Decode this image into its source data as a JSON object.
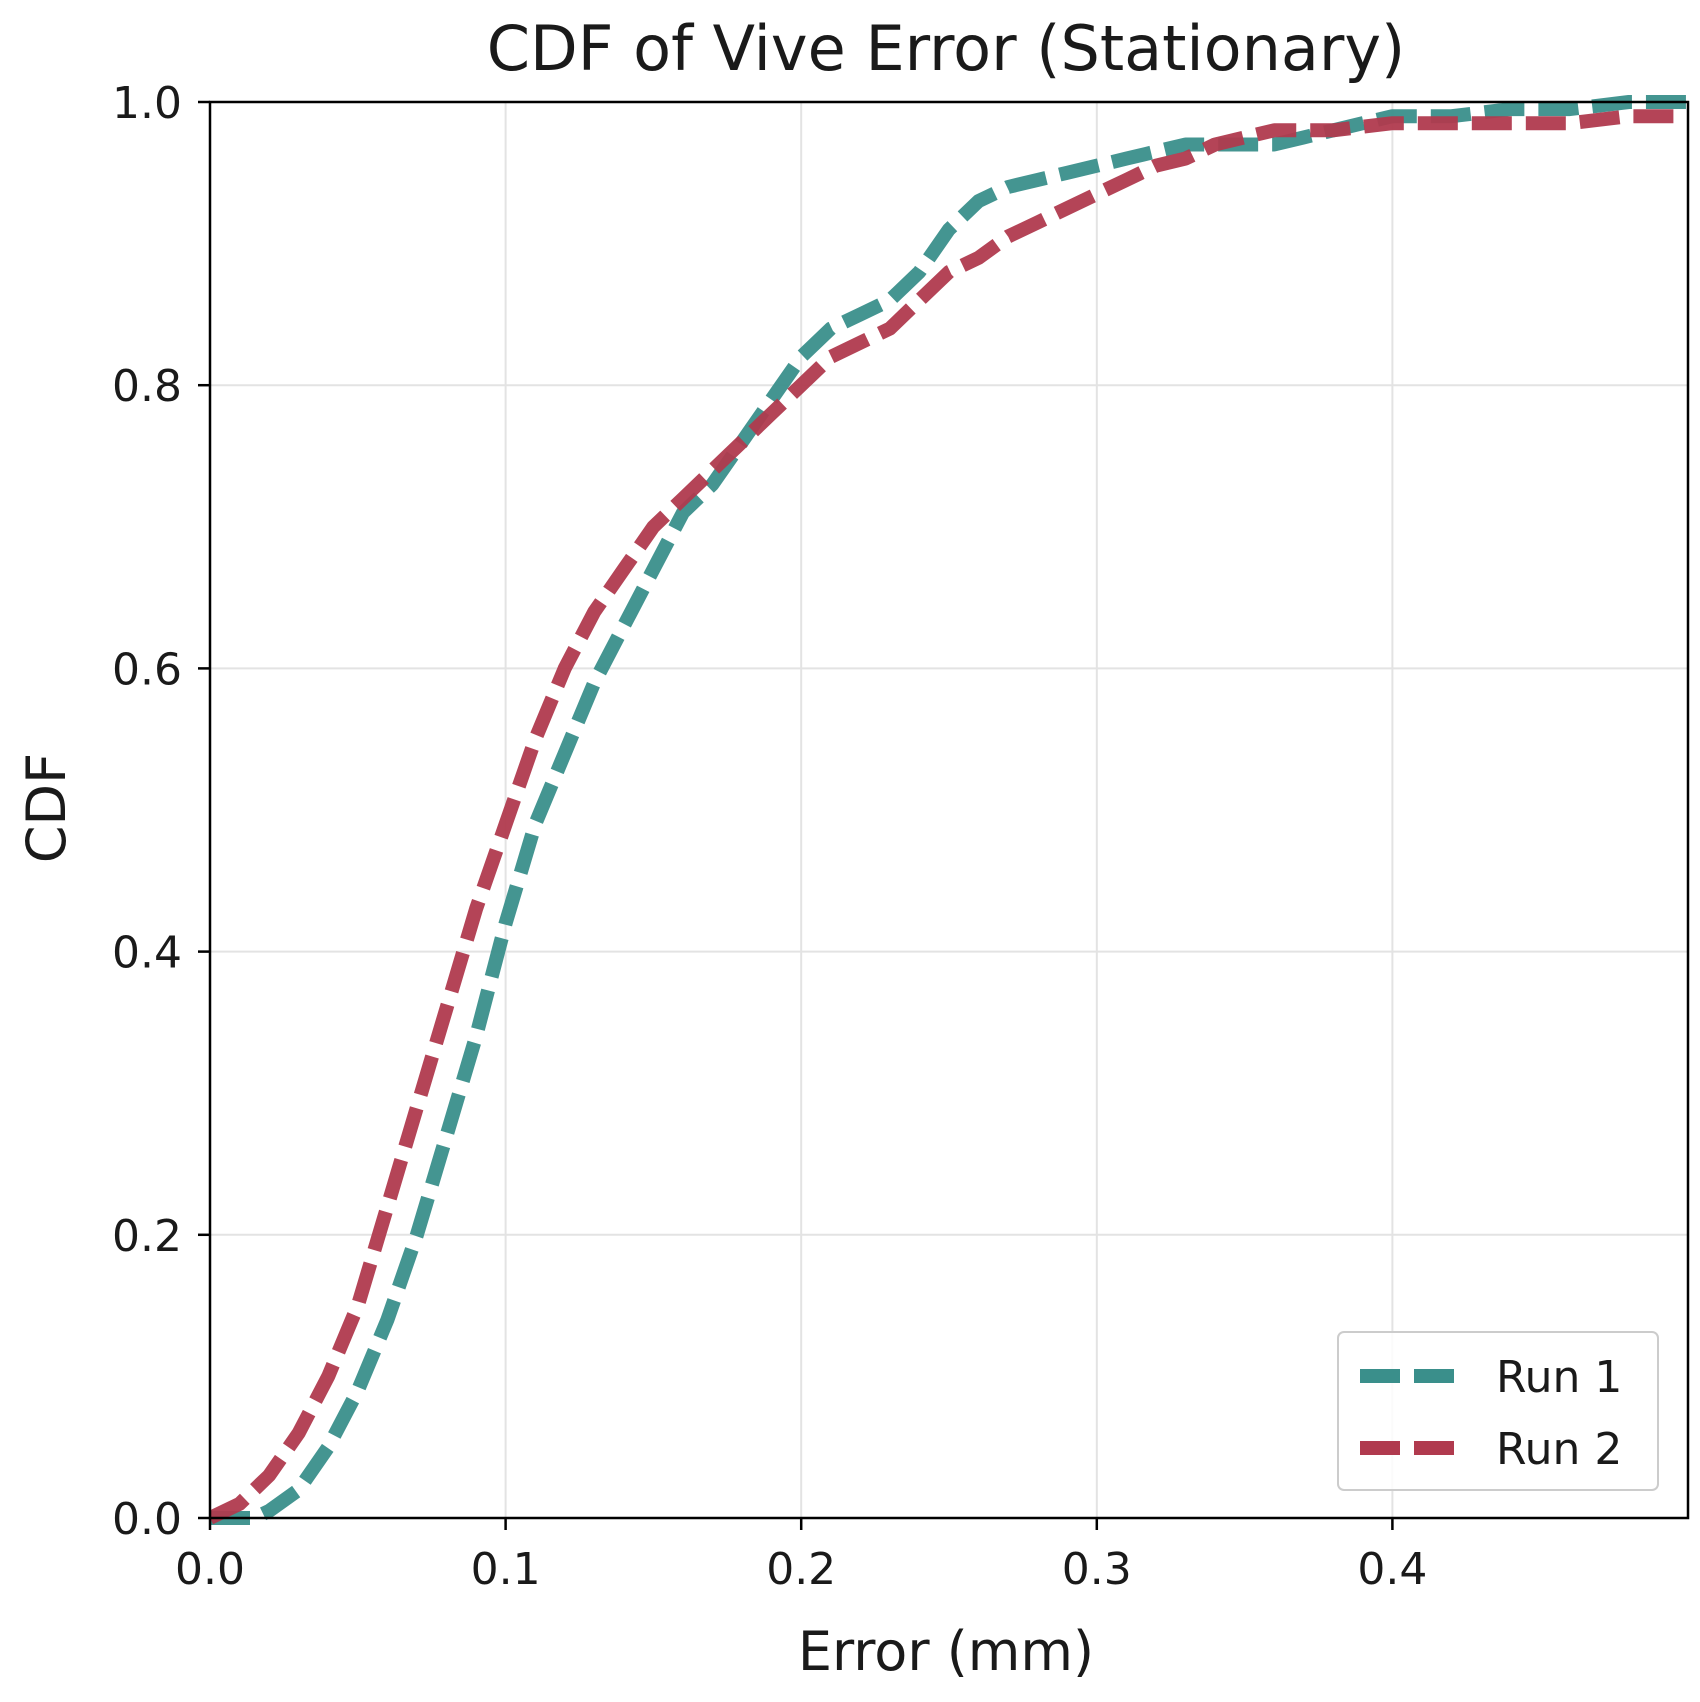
{
  "chart_data": {
    "type": "line",
    "title": "CDF of Vive Error (Stationary)",
    "xlabel": "Error (mm)",
    "ylabel": "CDF",
    "xlim": [
      0,
      0.5
    ],
    "ylim": [
      0,
      1
    ],
    "xticks": [
      0,
      0.1,
      0.2,
      0.3,
      0.4
    ],
    "xtick_labels": [
      "0.0",
      "0.1",
      "0.2",
      "0.3",
      "0.4"
    ],
    "yticks": [
      0,
      0.2,
      0.4,
      0.6,
      0.8,
      1.0
    ],
    "ytick_labels": [
      "0.0",
      "0.2",
      "0.4",
      "0.6",
      "0.8",
      "1.0"
    ],
    "grid": true,
    "legend_position": "lower-right",
    "series": [
      {
        "name": "Run 1",
        "color": "#3a8f8b",
        "x": [
          0.0,
          0.015,
          0.02,
          0.03,
          0.04,
          0.05,
          0.06,
          0.07,
          0.08,
          0.09,
          0.095,
          0.1,
          0.11,
          0.12,
          0.13,
          0.14,
          0.15,
          0.16,
          0.17,
          0.18,
          0.19,
          0.2,
          0.21,
          0.22,
          0.23,
          0.24,
          0.25,
          0.26,
          0.27,
          0.28,
          0.29,
          0.3,
          0.31,
          0.32,
          0.33,
          0.34,
          0.35,
          0.36,
          0.37,
          0.38,
          0.39,
          0.4,
          0.42,
          0.44,
          0.46,
          0.48,
          0.5
        ],
        "y": [
          0.0,
          0.0,
          0.005,
          0.02,
          0.05,
          0.09,
          0.14,
          0.2,
          0.27,
          0.34,
          0.38,
          0.42,
          0.49,
          0.54,
          0.59,
          0.63,
          0.67,
          0.71,
          0.73,
          0.76,
          0.79,
          0.82,
          0.84,
          0.85,
          0.86,
          0.88,
          0.91,
          0.93,
          0.94,
          0.945,
          0.95,
          0.955,
          0.96,
          0.965,
          0.97,
          0.97,
          0.97,
          0.97,
          0.975,
          0.98,
          0.985,
          0.99,
          0.99,
          0.995,
          0.995,
          1.0,
          1.0
        ]
      },
      {
        "name": "Run 2",
        "color": "#b03a4e",
        "x": [
          0.0,
          0.01,
          0.02,
          0.03,
          0.04,
          0.05,
          0.06,
          0.07,
          0.08,
          0.09,
          0.1,
          0.11,
          0.12,
          0.13,
          0.14,
          0.15,
          0.16,
          0.17,
          0.18,
          0.19,
          0.2,
          0.21,
          0.22,
          0.23,
          0.24,
          0.25,
          0.26,
          0.27,
          0.28,
          0.29,
          0.3,
          0.31,
          0.32,
          0.33,
          0.34,
          0.35,
          0.36,
          0.37,
          0.38,
          0.4,
          0.42,
          0.44,
          0.46,
          0.48,
          0.5
        ],
        "y": [
          0.0,
          0.01,
          0.03,
          0.06,
          0.1,
          0.15,
          0.22,
          0.29,
          0.36,
          0.43,
          0.49,
          0.55,
          0.6,
          0.64,
          0.67,
          0.7,
          0.72,
          0.74,
          0.76,
          0.78,
          0.8,
          0.82,
          0.83,
          0.84,
          0.86,
          0.88,
          0.89,
          0.905,
          0.915,
          0.925,
          0.935,
          0.945,
          0.955,
          0.96,
          0.97,
          0.975,
          0.98,
          0.98,
          0.98,
          0.985,
          0.985,
          0.985,
          0.985,
          0.99,
          0.99
        ]
      }
    ]
  }
}
